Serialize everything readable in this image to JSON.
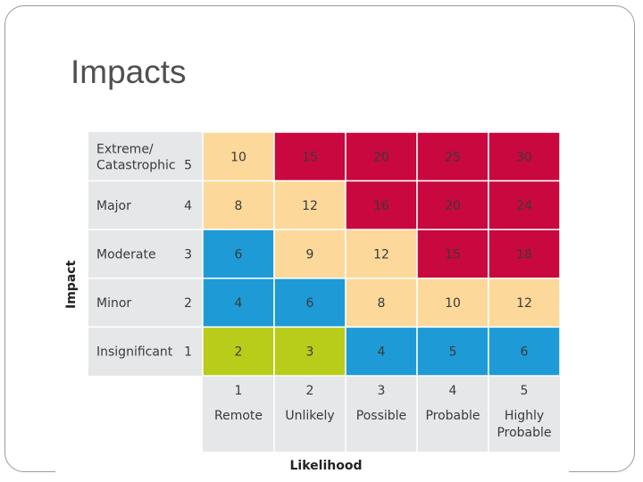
{
  "slide": {
    "title": "Impacts"
  },
  "axes": {
    "y_label": "Impact",
    "x_label": "Likelihood"
  },
  "rows": [
    {
      "label": "Extreme/\nCatastrophic",
      "level": "5",
      "scores": [
        10,
        15,
        20,
        25,
        30
      ]
    },
    {
      "label": "Major",
      "level": "4",
      "scores": [
        8,
        12,
        16,
        20,
        24
      ]
    },
    {
      "label": "Moderate",
      "level": "3",
      "scores": [
        6,
        9,
        12,
        15,
        18
      ]
    },
    {
      "label": "Minor",
      "level": "2",
      "scores": [
        4,
        6,
        8,
        10,
        12
      ]
    },
    {
      "label": "Insignificant",
      "level": "1",
      "scores": [
        2,
        3,
        4,
        5,
        6
      ]
    }
  ],
  "columns": [
    {
      "level": "1",
      "label": "Remote"
    },
    {
      "level": "2",
      "label": "Unlikely"
    },
    {
      "level": "3",
      "label": "Possible"
    },
    {
      "level": "4",
      "label": "Probable"
    },
    {
      "level": "5",
      "label": "Highly\nProbable"
    }
  ],
  "cell_colors": [
    [
      "#fcd89a",
      "#c8083f",
      "#c8083f",
      "#c8083f",
      "#c8083f"
    ],
    [
      "#fcd89a",
      "#fcd89a",
      "#c8083f",
      "#c8083f",
      "#c8083f"
    ],
    [
      "#1e9ad6",
      "#fcd89a",
      "#fcd89a",
      "#c8083f",
      "#c8083f"
    ],
    [
      "#1e9ad6",
      "#1e9ad6",
      "#fcd89a",
      "#fcd89a",
      "#fcd89a"
    ],
    [
      "#b8cc1a",
      "#b8cc1a",
      "#1e9ad6",
      "#1e9ad6",
      "#1e9ad6"
    ]
  ],
  "colors": {
    "label_background": "#e6e7e8",
    "grid_line": "#ffffff",
    "text": "#3a3a3a"
  }
}
